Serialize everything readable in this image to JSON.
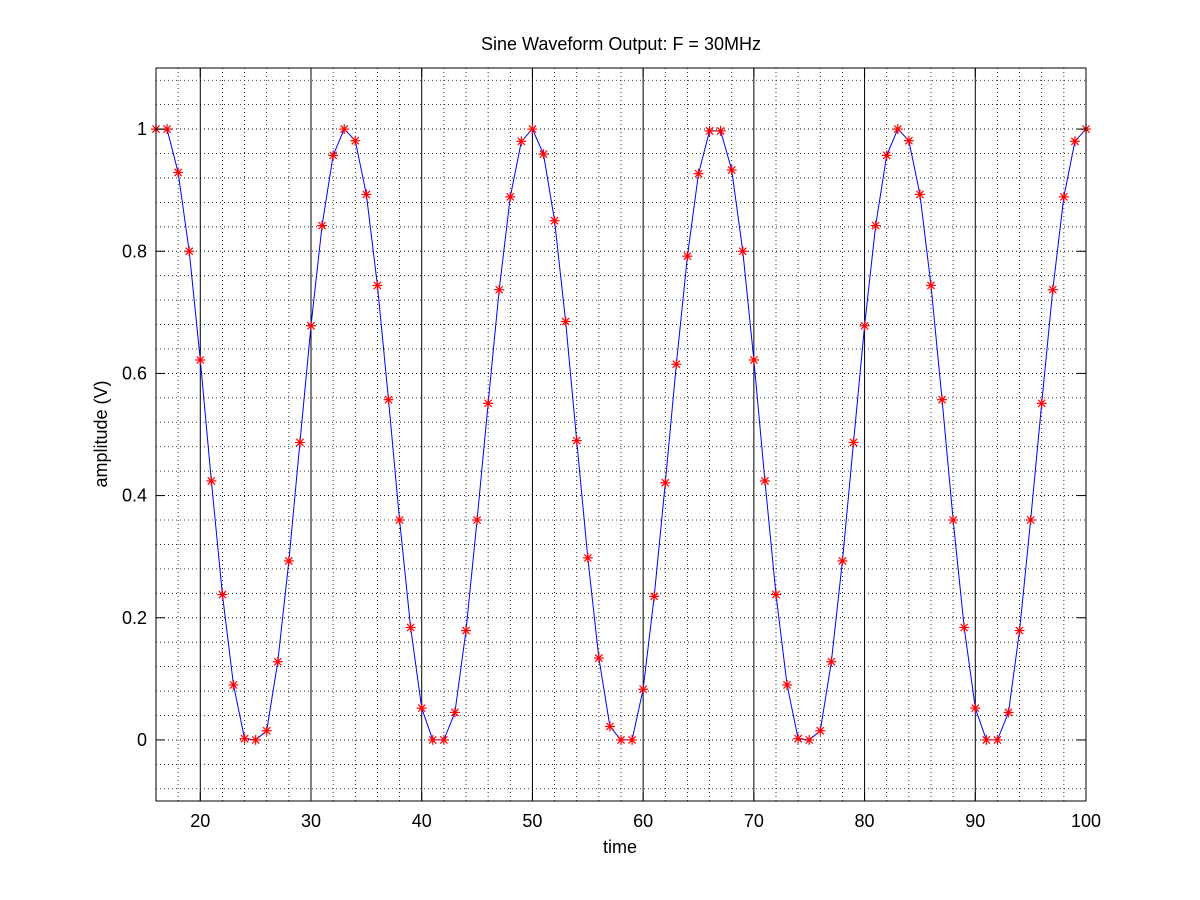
{
  "chart_data": {
    "type": "line",
    "title": "Sine Waveform Output: F = 30MHz",
    "xlabel": "time",
    "ylabel": "amplitude (V)",
    "xlim": [
      16,
      100
    ],
    "ylim": [
      -0.1,
      1.1
    ],
    "x_ticks": [
      20,
      30,
      40,
      50,
      60,
      70,
      80,
      90,
      100
    ],
    "y_ticks": [
      0,
      0.2,
      0.4,
      0.6,
      0.8,
      1
    ],
    "x_tick_labels": [
      "20",
      "30",
      "40",
      "50",
      "60",
      "70",
      "80",
      "90",
      "100"
    ],
    "y_tick_labels": [
      "0",
      "0.2",
      "0.4",
      "0.6",
      "0.8",
      "1"
    ],
    "grid": "on (major solid vertical, minor dotted)",
    "series": [
      {
        "line_color": "#0000ff",
        "marker": "*",
        "marker_color": "#ff0000",
        "x": [
          16,
          17,
          18,
          19,
          20,
          21,
          22,
          23,
          24,
          25,
          26,
          27,
          28,
          29,
          30,
          31,
          32,
          33,
          34,
          35,
          36,
          37,
          38,
          39,
          40,
          41,
          42,
          43,
          44,
          45,
          46,
          47,
          48,
          49,
          50,
          51,
          52,
          53,
          54,
          55,
          56,
          57,
          58,
          59,
          60,
          61,
          62,
          63,
          64,
          65,
          66,
          67,
          68,
          69,
          70,
          71,
          72,
          73,
          74,
          75,
          76,
          77,
          78,
          79,
          80,
          81,
          82,
          83,
          84,
          85,
          86,
          87,
          88,
          89,
          90,
          91,
          92,
          93,
          94,
          95,
          96,
          97,
          98,
          99,
          100
        ],
        "values": [
          1.0,
          1.0,
          0.929,
          0.8,
          0.622,
          0.424,
          0.238,
          0.09,
          0.002,
          0.0,
          0.015,
          0.128,
          0.293,
          0.487,
          0.678,
          0.842,
          0.957,
          1.0,
          0.981,
          0.893,
          0.744,
          0.557,
          0.36,
          0.184,
          0.052,
          0.0,
          0.0,
          0.045,
          0.179,
          0.36,
          0.551,
          0.737,
          0.889,
          0.98,
          1.0,
          0.959,
          0.85,
          0.685,
          0.49,
          0.298,
          0.134,
          0.022,
          0.0,
          0.0,
          0.083,
          0.235,
          0.421,
          0.615,
          0.792,
          0.927,
          0.997,
          0.997,
          0.933,
          0.8,
          0.622,
          0.424,
          0.238,
          0.09,
          0.002,
          0.0,
          0.015,
          0.128,
          0.293,
          0.487,
          0.678,
          0.842,
          0.957,
          1.0,
          0.981,
          0.893,
          0.744,
          0.557,
          0.36,
          0.184,
          0.052,
          0.0,
          0.0,
          0.045,
          0.179,
          0.36,
          0.551,
          0.737,
          0.889,
          0.98,
          1.0
        ]
      }
    ]
  }
}
